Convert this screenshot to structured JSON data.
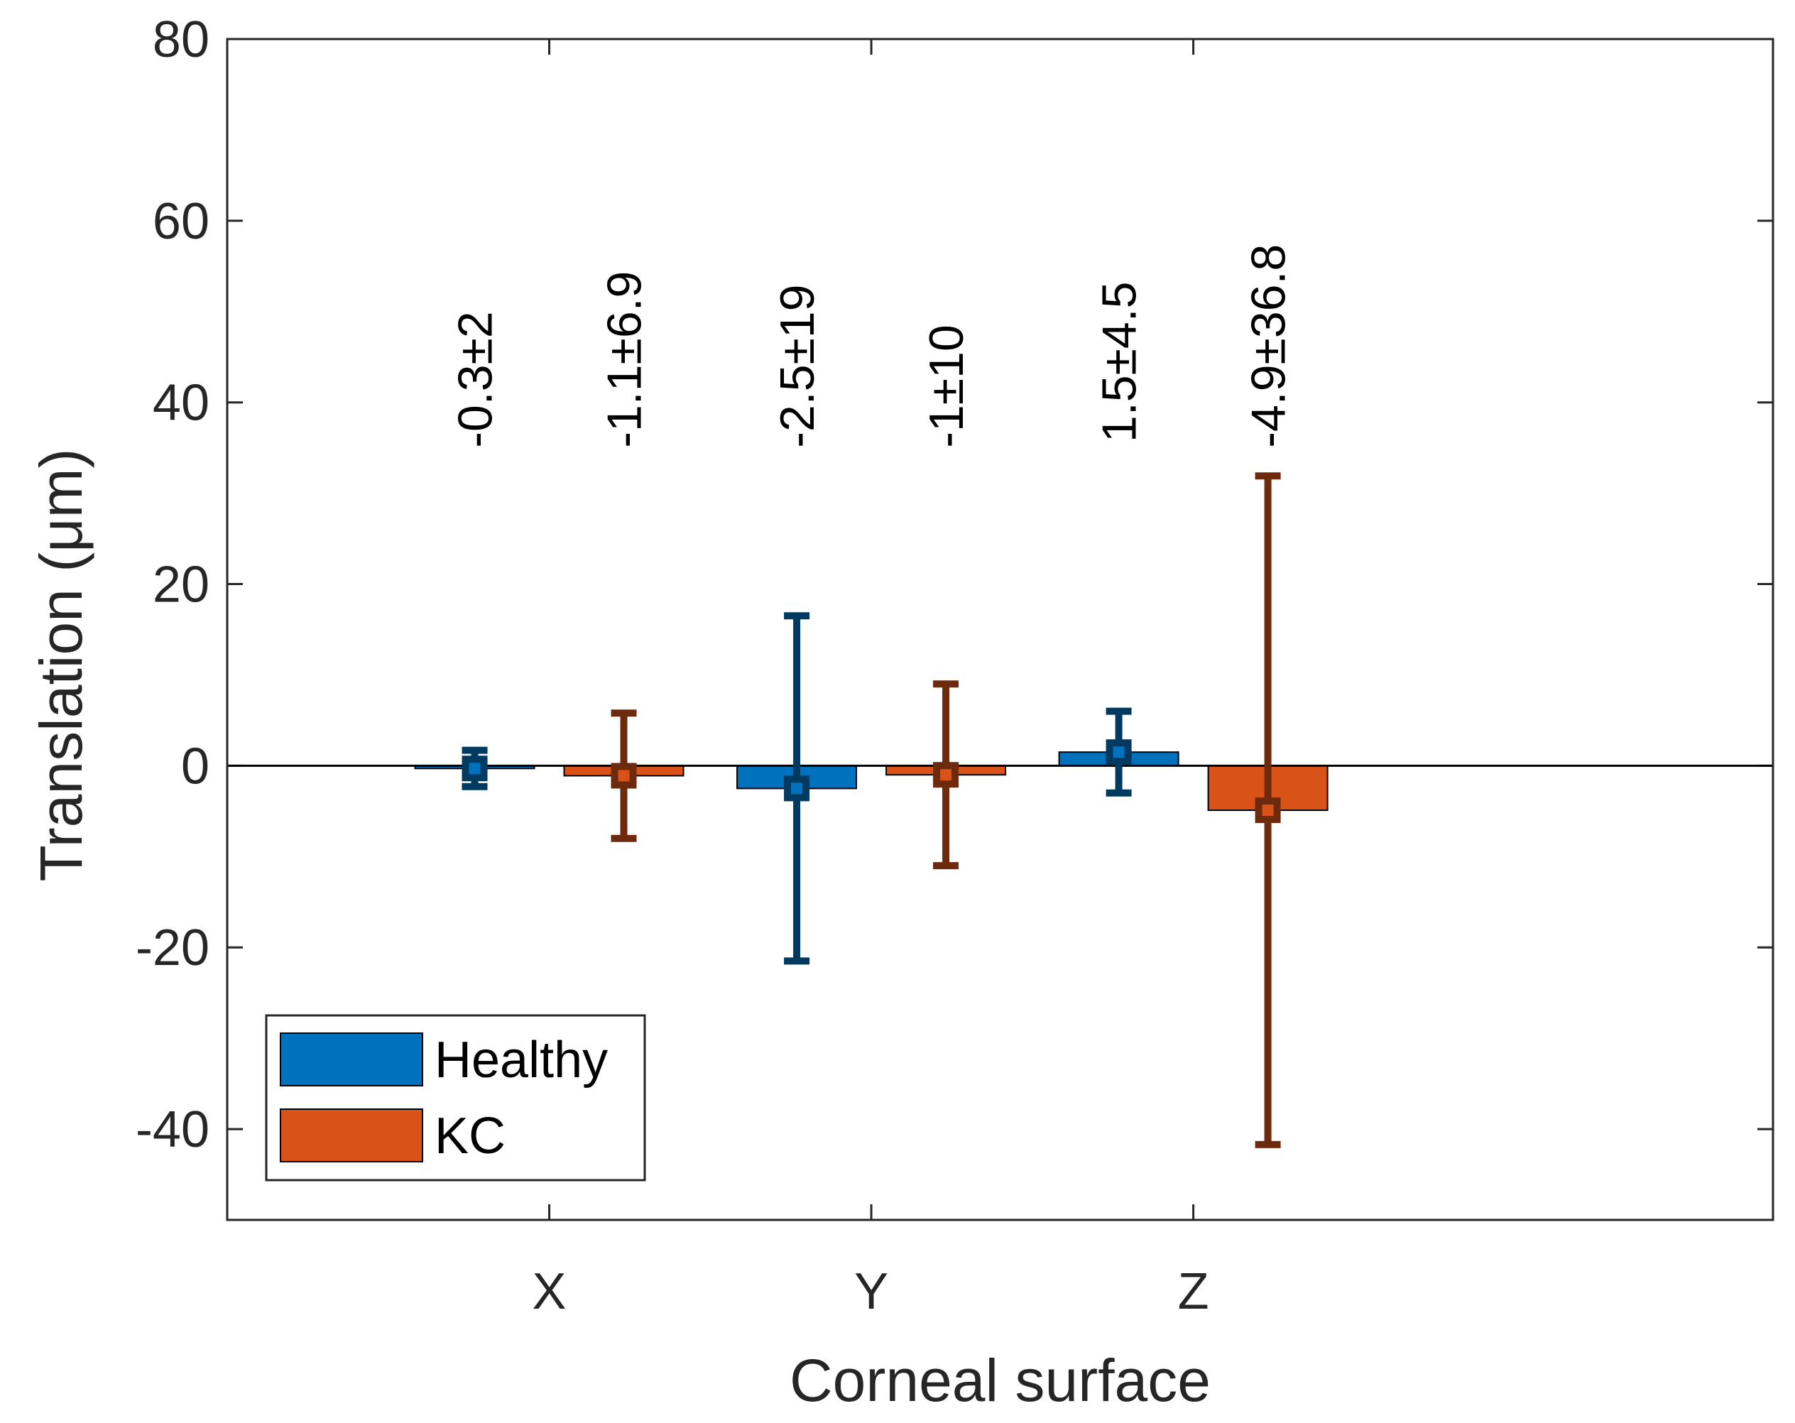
{
  "chart_data": {
    "type": "bar",
    "xlabel": "Corneal surface",
    "ylabel": "Translation (μm)",
    "ylim": [
      -50,
      80
    ],
    "yticks": [
      80,
      60,
      40,
      20,
      0,
      -20,
      -40
    ],
    "categories": [
      "X",
      "Y",
      "Z"
    ],
    "grid": false,
    "legend_position": "bottom-left",
    "series": [
      {
        "name": "Healthy",
        "color": "#0072BD",
        "error_color": "#003A60",
        "values": [
          -0.3,
          -2.5,
          1.5
        ],
        "errors": [
          2,
          19,
          4.5
        ],
        "labels": [
          "-0.3±2",
          "-2.5±19",
          "1.5±4.5"
        ]
      },
      {
        "name": "KC",
        "color": "#D95319",
        "error_color": "#6E2A0C",
        "values": [
          -1.1,
          -1,
          -4.9
        ],
        "errors": [
          6.9,
          10,
          36.8
        ],
        "labels": [
          "-1.1±6.9",
          "-1±10",
          "-4.9±36.8"
        ]
      }
    ]
  }
}
